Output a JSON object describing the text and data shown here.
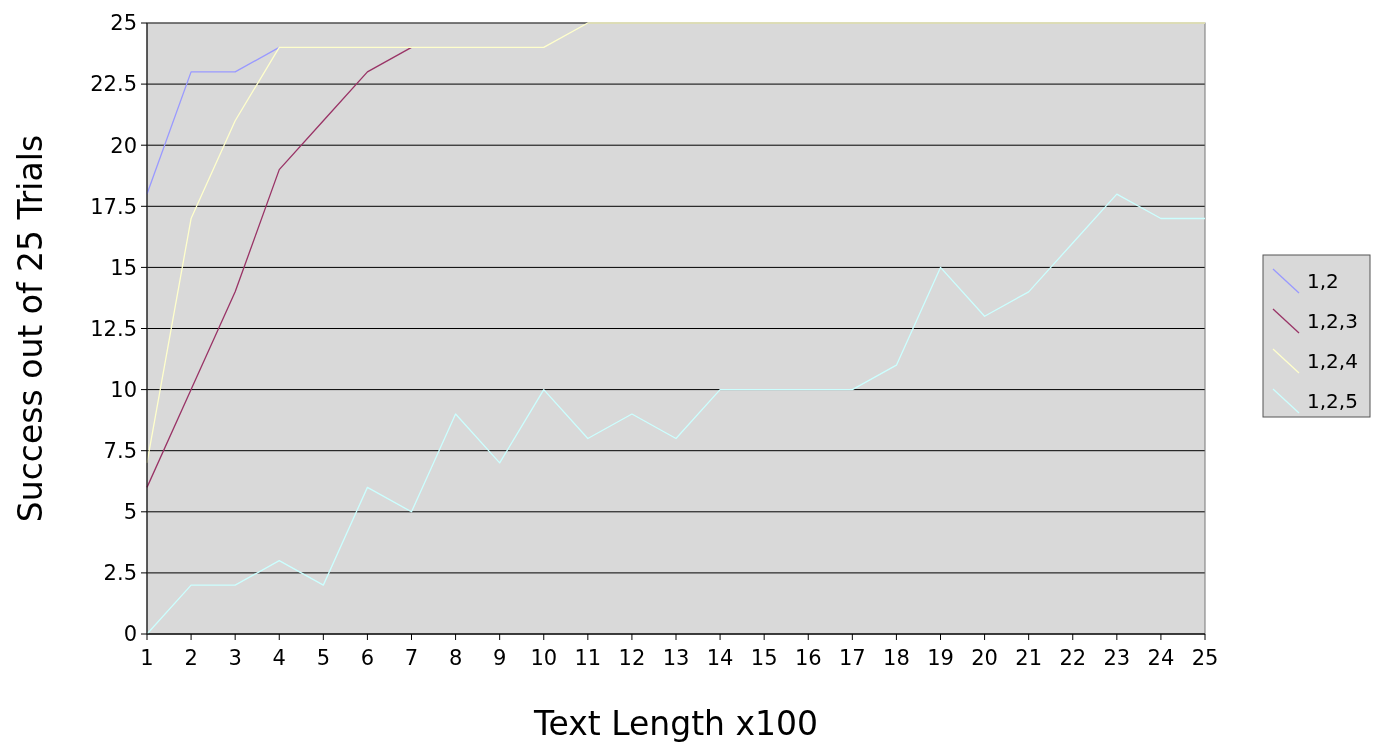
{
  "chart_data": {
    "type": "line",
    "xlabel": "Text Length x100",
    "ylabel": "Success out of 25 Trials",
    "x": [
      1,
      2,
      3,
      4,
      5,
      6,
      7,
      8,
      9,
      10,
      11,
      12,
      13,
      14,
      15,
      16,
      17,
      18,
      19,
      20,
      21,
      22,
      23,
      24,
      25
    ],
    "xlim": [
      1,
      25
    ],
    "xticks": [
      1,
      2,
      3,
      4,
      5,
      6,
      7,
      8,
      9,
      10,
      11,
      12,
      13,
      14,
      15,
      16,
      17,
      18,
      19,
      20,
      21,
      22,
      23,
      24,
      25
    ],
    "ylim": [
      0,
      25
    ],
    "yticks": [
      0,
      2.5,
      5,
      7.5,
      10,
      12.5,
      15,
      17.5,
      20,
      22.5,
      25
    ],
    "grid": "y",
    "legend": "right",
    "marker": "none",
    "line_style": "solid",
    "series": [
      {
        "name": "1,2",
        "color": "#9999ff",
        "values": [
          18,
          23,
          23,
          24,
          null,
          null,
          null,
          null,
          null,
          null,
          null,
          null,
          null,
          null,
          null,
          null,
          null,
          null,
          null,
          null,
          null,
          null,
          null,
          null,
          null
        ]
      },
      {
        "name": "1,2,3",
        "color": "#993366",
        "values": [
          6,
          10,
          14,
          19,
          21,
          23,
          24,
          null,
          null,
          null,
          null,
          null,
          null,
          null,
          null,
          null,
          null,
          null,
          null,
          null,
          null,
          null,
          null,
          null,
          null
        ]
      },
      {
        "name": "1,2,4",
        "color": "#ffffcc",
        "values": [
          7,
          17,
          21,
          24,
          24,
          24,
          24,
          24,
          24,
          24,
          25,
          25,
          25,
          25,
          25,
          25,
          25,
          25,
          25,
          25,
          25,
          25,
          25,
          25,
          25
        ]
      },
      {
        "name": "1,2,5",
        "color": "#ccffff",
        "values": [
          0,
          2,
          2,
          3,
          2,
          6,
          5,
          9,
          7,
          10,
          8,
          9,
          8,
          10,
          10,
          10,
          10,
          11,
          15,
          13,
          14,
          16,
          18,
          17,
          17
        ]
      }
    ]
  }
}
